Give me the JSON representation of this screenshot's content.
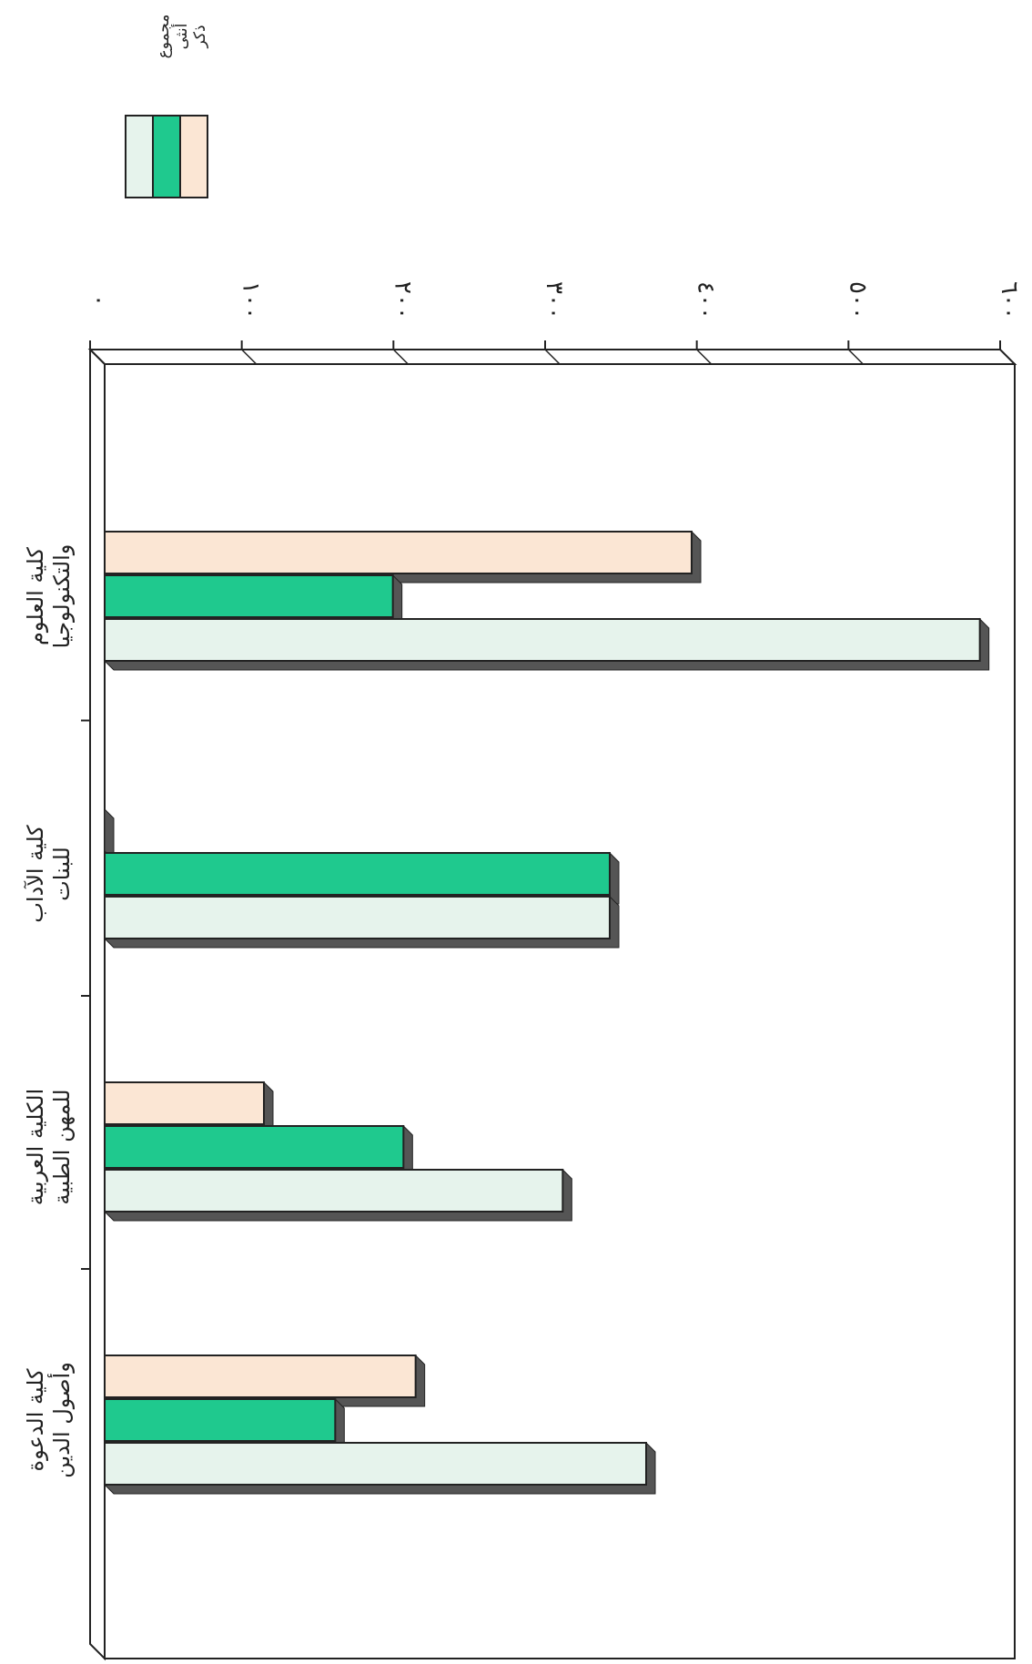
{
  "chart_data": {
    "type": "bar",
    "orientation": "horizontal",
    "categories": [
      [
        "كلية العلوم",
        "والتكنولوجيا"
      ],
      [
        "كلية الآداب",
        "للبنات"
      ],
      [
        "الكلية العربية",
        "للمهن الطبية"
      ],
      [
        "كلية الدعوة",
        "وأصول الدين"
      ]
    ],
    "series": [
      {
        "name": "ذكر",
        "color": "#fbe6d4",
        "values": [
          387,
          0,
          105,
          205
        ]
      },
      {
        "name": "أنثى",
        "color": "#1fc98e",
        "values": [
          190,
          333,
          197,
          152
        ]
      },
      {
        "name": "مجموع",
        "color": "#e6f3ec",
        "values": [
          577,
          333,
          302,
          357
        ]
      }
    ],
    "xlim": [
      0,
      600
    ],
    "ticks": [
      0,
      100,
      200,
      300,
      400,
      500,
      600
    ],
    "tick_labels": [
      "٠",
      "١٠٠",
      "٢٠٠",
      "٣٠٠",
      "٤٠٠",
      "٥٠٠",
      "٦٠٠"
    ],
    "legend_position": "top-left",
    "grid": false
  }
}
